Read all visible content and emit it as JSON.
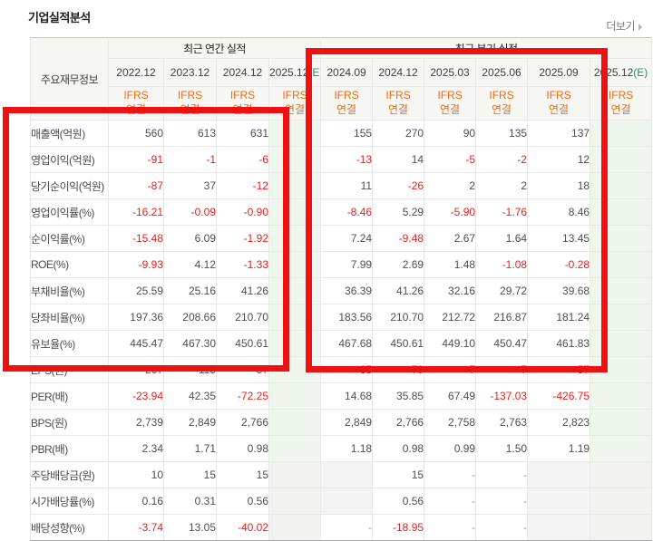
{
  "header": {
    "title": "기업실적분석",
    "more_label": "더보기"
  },
  "colors": {
    "accent_orange": "#f0690f",
    "estimate_green": "#11a05a",
    "negative_red": "#e8201d",
    "value_gray": "#4f4f4f",
    "header_bg": "#f6f6f3",
    "estimate_col_bg": "#eef6ee",
    "nodata_bg": "#f4f4f4",
    "annotation_red": "#ed1111"
  },
  "annotations": [
    {
      "name": "red-box-annual-rows"
    },
    {
      "name": "red-box-quarterly-columns"
    }
  ],
  "table": {
    "corner_label": "주요재무정보",
    "groups": [
      {
        "label": "최근 연간 실적",
        "span": 4
      },
      {
        "label": "최근 분기 실적",
        "span": 6
      }
    ],
    "columns": [
      {
        "period": "2022.12",
        "suffix": "",
        "ifrs": "IFRS",
        "scope": "연결",
        "estimate": false
      },
      {
        "period": "2023.12",
        "suffix": "",
        "ifrs": "IFRS",
        "scope": "연결",
        "estimate": false
      },
      {
        "period": "2024.12",
        "suffix": "",
        "ifrs": "IFRS",
        "scope": "연결",
        "estimate": false
      },
      {
        "period": "2025.12",
        "suffix": "(E)",
        "ifrs": "IFRS",
        "scope": "연결",
        "estimate": true
      },
      {
        "period": "2024.09",
        "suffix": "",
        "ifrs": "IFRS",
        "scope": "연결",
        "estimate": false
      },
      {
        "period": "2024.12",
        "suffix": "",
        "ifrs": "IFRS",
        "scope": "연결",
        "estimate": false
      },
      {
        "period": "2025.03",
        "suffix": "",
        "ifrs": "IFRS",
        "scope": "연결",
        "estimate": false
      },
      {
        "period": "2025.06",
        "suffix": "",
        "ifrs": "IFRS",
        "scope": "연결",
        "estimate": false
      },
      {
        "period": "2025.09",
        "suffix": "",
        "ifrs": "IFRS",
        "scope": "연결",
        "estimate": false
      },
      {
        "period": "2025.12",
        "suffix": "(E)",
        "ifrs": "IFRS",
        "scope": "연결",
        "estimate": true
      }
    ],
    "rows": [
      {
        "label": "매출액(억원)",
        "sep": false,
        "dim_estimate": false,
        "values": [
          "560",
          "613",
          "631",
          "",
          "155",
          "270",
          "90",
          "135",
          "137",
          ""
        ]
      },
      {
        "label": "영업이익(억원)",
        "sep": false,
        "dim_estimate": false,
        "values": [
          "-91",
          "-1",
          "-6",
          "",
          "-13",
          "14",
          "-5",
          "-2",
          "12",
          ""
        ]
      },
      {
        "label": "당기순이익(억원)",
        "sep": false,
        "dim_estimate": false,
        "values": [
          "-87",
          "37",
          "-12",
          "",
          "11",
          "-26",
          "2",
          "2",
          "18",
          ""
        ]
      },
      {
        "label": "영업이익률(%)",
        "sep": true,
        "dim_estimate": false,
        "values": [
          "-16.21",
          "-0.09",
          "-0.90",
          "",
          "-8.46",
          "5.29",
          "-5.90",
          "-1.76",
          "8.46",
          ""
        ]
      },
      {
        "label": "순이익률(%)",
        "sep": false,
        "dim_estimate": false,
        "values": [
          "-15.48",
          "6.09",
          "-1.92",
          "",
          "7.24",
          "-9.48",
          "2.67",
          "1.64",
          "13.45",
          ""
        ]
      },
      {
        "label": "ROE(%)",
        "sep": false,
        "dim_estimate": false,
        "values": [
          "-9.93",
          "4.12",
          "-1.33",
          "",
          "7.99",
          "2.69",
          "1.48",
          "-1.08",
          "-0.28",
          ""
        ]
      },
      {
        "label": "부채비율(%)",
        "sep": true,
        "dim_estimate": false,
        "values": [
          "25.59",
          "25.16",
          "41.26",
          "",
          "36.39",
          "41.26",
          "32.16",
          "29.72",
          "39.68",
          ""
        ]
      },
      {
        "label": "당좌비율(%)",
        "sep": false,
        "dim_estimate": false,
        "values": [
          "197.36",
          "208.66",
          "210.70",
          "",
          "183.56",
          "210.70",
          "212.72",
          "216.87",
          "181.24",
          ""
        ]
      },
      {
        "label": "유보율(%)",
        "sep": false,
        "dim_estimate": false,
        "values": [
          "445.47",
          "467.30",
          "450.61",
          "",
          "467.68",
          "450.61",
          "449.10",
          "450.47",
          "461.83",
          ""
        ]
      },
      {
        "label": "EPS(원)",
        "sep": true,
        "dim_estimate": false,
        "values": [
          "-267",
          "115",
          "-37",
          "",
          "35",
          "-79",
          "7",
          "7",
          "57",
          ""
        ]
      },
      {
        "label": "PER(배)",
        "sep": false,
        "dim_estimate": false,
        "values": [
          "-23.94",
          "42.35",
          "-72.25",
          "",
          "14.68",
          "35.85",
          "67.49",
          "-137.03",
          "-426.75",
          ""
        ]
      },
      {
        "label": "BPS(원)",
        "sep": false,
        "dim_estimate": false,
        "values": [
          "2,739",
          "2,849",
          "2,766",
          "",
          "2,849",
          "2,766",
          "2,758",
          "2,763",
          "2,823",
          ""
        ]
      },
      {
        "label": "PBR(배)",
        "sep": false,
        "dim_estimate": false,
        "values": [
          "2.34",
          "1.71",
          "0.98",
          "",
          "1.18",
          "0.98",
          "0.99",
          "1.50",
          "1.19",
          ""
        ]
      },
      {
        "label": "주당배당금(원)",
        "sep": true,
        "dim_estimate": true,
        "values": [
          "10",
          "15",
          "15",
          "",
          "",
          "15",
          "-",
          "-",
          "",
          ""
        ]
      },
      {
        "label": "시가배당률(%)",
        "sep": false,
        "dim_estimate": true,
        "values": [
          "0.16",
          "0.31",
          "0.56",
          "",
          "",
          "0.56",
          "-",
          "-",
          "",
          ""
        ]
      },
      {
        "label": "배당성향(%)",
        "sep": false,
        "dim_estimate": true,
        "values": [
          "-3.74",
          "13.05",
          "-40.02",
          "",
          "-",
          "-18.95",
          "-",
          "-",
          "",
          ""
        ]
      }
    ]
  }
}
